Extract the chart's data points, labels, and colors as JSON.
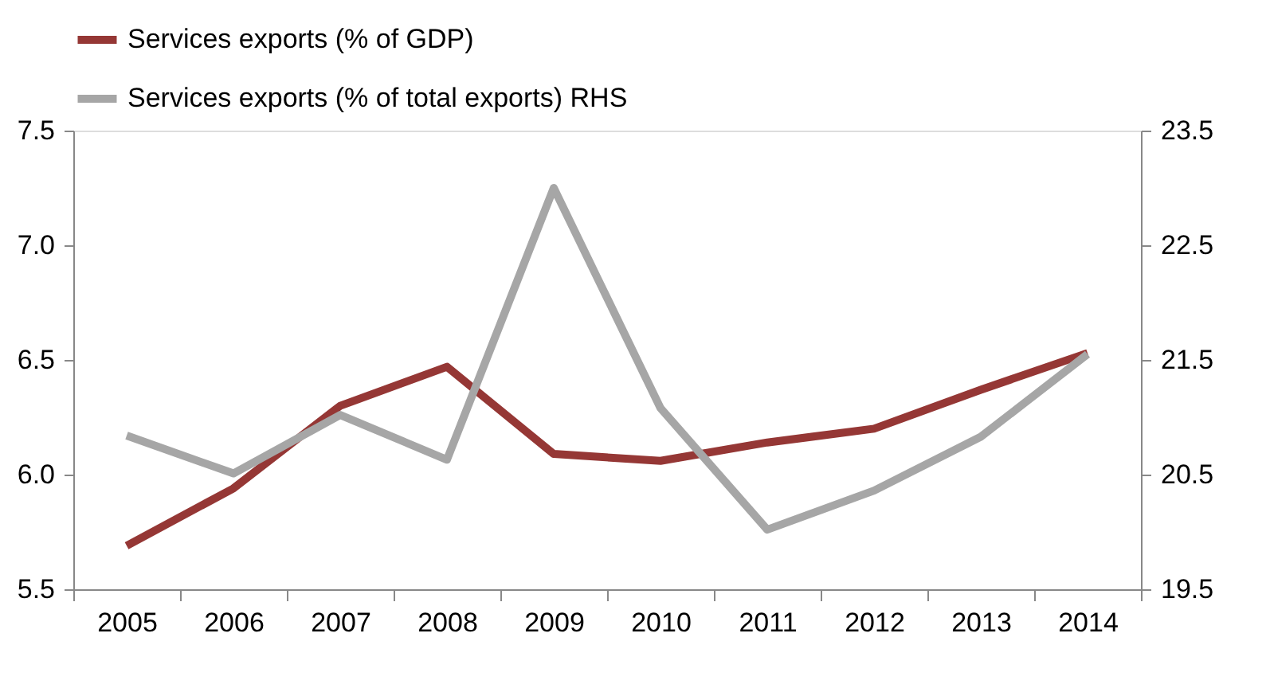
{
  "chart_data": {
    "type": "line",
    "categories": [
      "2005",
      "2006",
      "2007",
      "2008",
      "2009",
      "2010",
      "2011",
      "2012",
      "2013",
      "2014"
    ],
    "series": [
      {
        "name": "Services exports (% of GDP)",
        "color": "#953735",
        "values": [
          5.69,
          5.94,
          6.3,
          6.47,
          6.09,
          6.06,
          6.14,
          6.2,
          6.37,
          6.53
        ]
      },
      {
        "name": "Services exports (% of total exports) RHS",
        "color": "#a6a6a6",
        "axis": "y2",
        "values": [
          20.84,
          20.51,
          21.02,
          20.63,
          23.0,
          21.08,
          20.02,
          20.36,
          20.83,
          21.55
        ]
      }
    ],
    "ylim": [
      5.5,
      7.5
    ],
    "yticks": [
      5.5,
      {
        "value": 6,
        "label": "6.0"
      },
      6.5,
      {
        "value": 7,
        "label": "7.0"
      },
      7.5
    ],
    "y2lim": [
      19.5,
      23.5
    ],
    "y2ticks": [
      19.5,
      20.5,
      21.5,
      22.5,
      23.5
    ],
    "grid": false,
    "legend": "top",
    "marker": "none",
    "line_style": "solid"
  }
}
